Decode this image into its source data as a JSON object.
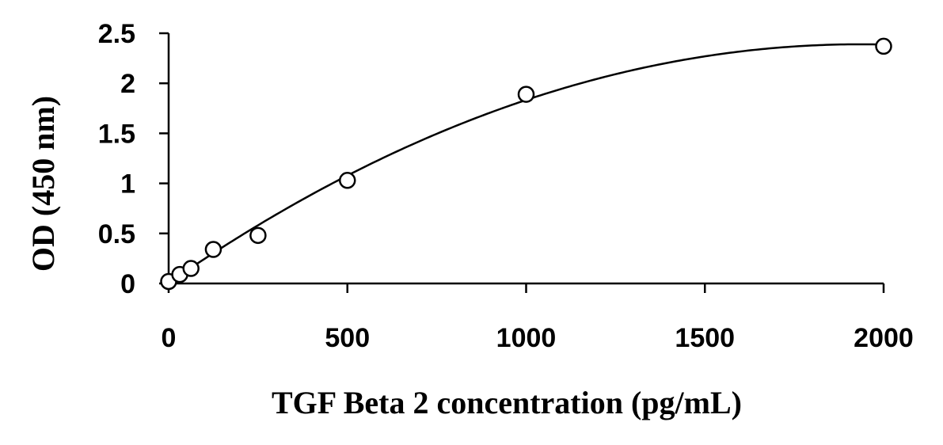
{
  "chart_data": {
    "type": "scatter",
    "xlabel": "TGF Beta 2 concentration (pg/mL)",
    "ylabel": "OD (450 nm)",
    "xlim": [
      0,
      2000
    ],
    "ylim": [
      0,
      2.5
    ],
    "x_ticks": [
      0,
      500,
      1000,
      1500,
      2000
    ],
    "y_ticks": [
      0,
      0.5,
      1,
      1.5,
      2,
      2.5
    ],
    "y_tick_labels": [
      "0",
      "0.5",
      "1",
      "1.5",
      "2",
      "2.5"
    ],
    "grid": false,
    "legend": "none",
    "series": [
      {
        "marker": "open-circle",
        "x": [
          0,
          31.25,
          62.5,
          125,
          250,
          500,
          1000,
          2000
        ],
        "y": [
          0.02,
          0.09,
          0.15,
          0.34,
          0.48,
          1.03,
          1.89,
          2.37
        ]
      }
    ],
    "fit": {
      "type": "polynomial",
      "coefficients": [
        0.005,
        0.002465,
        -6.37e-07
      ]
    }
  }
}
